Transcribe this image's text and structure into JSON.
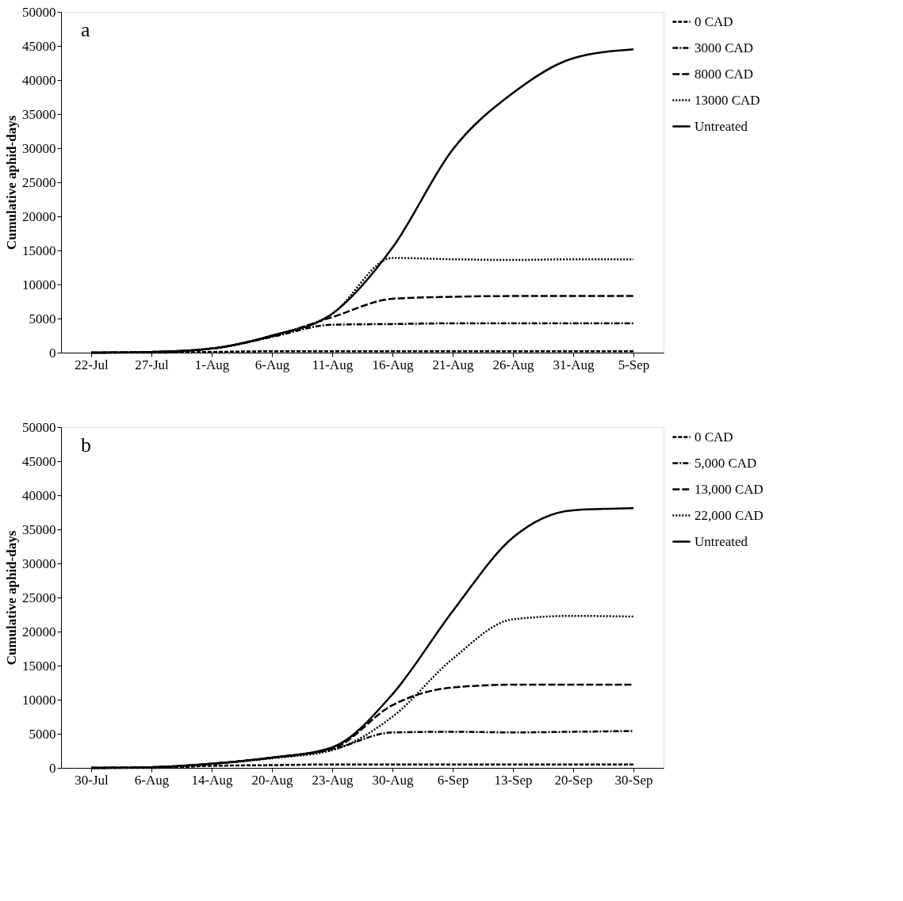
{
  "chart_data": [
    {
      "type": "line",
      "ylabel": "Cumulative aphid-days",
      "annotations": [
        "a"
      ],
      "categories": [
        "22-Jul",
        "27-Jul",
        "1-Aug",
        "6-Aug",
        "11-Aug",
        "16-Aug",
        "21-Aug",
        "26-Aug",
        "31-Aug",
        "5-Sep"
      ],
      "ylim": [
        0,
        50000
      ],
      "yticks": [
        0,
        5000,
        10000,
        15000,
        20000,
        25000,
        30000,
        35000,
        40000,
        45000,
        50000
      ],
      "grid": false,
      "legend": "top right",
      "marker": "none",
      "series": [
        {
          "name": "0 CAD",
          "color": "#000000",
          "line_style": "dashed",
          "values": [
            0,
            0,
            100,
            200,
            200,
            200,
            200,
            200,
            200,
            200
          ]
        },
        {
          "name": "3000 CAD",
          "color": "#000000",
          "line_style": "dashdot",
          "values": [
            0,
            100,
            600,
            2300,
            4100,
            4200,
            4300,
            4300,
            4300,
            4300
          ]
        },
        {
          "name": "8000 CAD",
          "color": "#000000",
          "line_style": "longdashed",
          "values": [
            0,
            100,
            600,
            2400,
            5200,
            7900,
            8200,
            8300,
            8300,
            8300
          ]
        },
        {
          "name": "13000 CAD",
          "color": "#000000",
          "line_style": "dotted",
          "values": [
            0,
            100,
            600,
            2500,
            5700,
            13900,
            13700,
            13600,
            13700,
            13700
          ]
        },
        {
          "name": "Untreated",
          "color": "#000000",
          "line_style": "solid",
          "values": [
            0,
            100,
            600,
            2500,
            5700,
            15400,
            29800,
            38100,
            43200,
            44500
          ]
        }
      ]
    },
    {
      "type": "line",
      "ylabel": "Cumulative aphid-days",
      "annotations": [
        "b"
      ],
      "categories": [
        "30-Jul",
        "6-Aug",
        "14-Aug",
        "20-Aug",
        "23-Aug",
        "30-Aug",
        "6-Sep",
        "13-Sep",
        "20-Sep",
        "30-Sep"
      ],
      "ylim": [
        0,
        50000
      ],
      "yticks": [
        0,
        5000,
        10000,
        15000,
        20000,
        25000,
        30000,
        35000,
        40000,
        45000,
        50000
      ],
      "grid": false,
      "legend": "top right",
      "marker": "none",
      "series": [
        {
          "name": "0 CAD",
          "color": "#000000",
          "line_style": "dashed",
          "values": [
            0,
            0,
            300,
            400,
            500,
            500,
            500,
            500,
            500,
            500
          ]
        },
        {
          "name": "5,000 CAD",
          "color": "#000000",
          "line_style": "dashdot",
          "values": [
            0,
            100,
            600,
            1500,
            2700,
            5200,
            5300,
            5200,
            5300,
            5400
          ]
        },
        {
          "name": "13,000 CAD",
          "color": "#000000",
          "line_style": "longdashed",
          "values": [
            0,
            100,
            600,
            1500,
            2800,
            9200,
            11800,
            12200,
            12200,
            12200
          ]
        },
        {
          "name": "22,000 CAD",
          "color": "#000000",
          "line_style": "dotted",
          "values": [
            0,
            100,
            600,
            1400,
            2600,
            7500,
            16000,
            21800,
            22300,
            22200
          ]
        },
        {
          "name": "Untreated",
          "color": "#000000",
          "line_style": "solid",
          "values": [
            0,
            100,
            600,
            1500,
            3000,
            10800,
            23000,
            33800,
            37800,
            38100
          ]
        }
      ]
    }
  ]
}
